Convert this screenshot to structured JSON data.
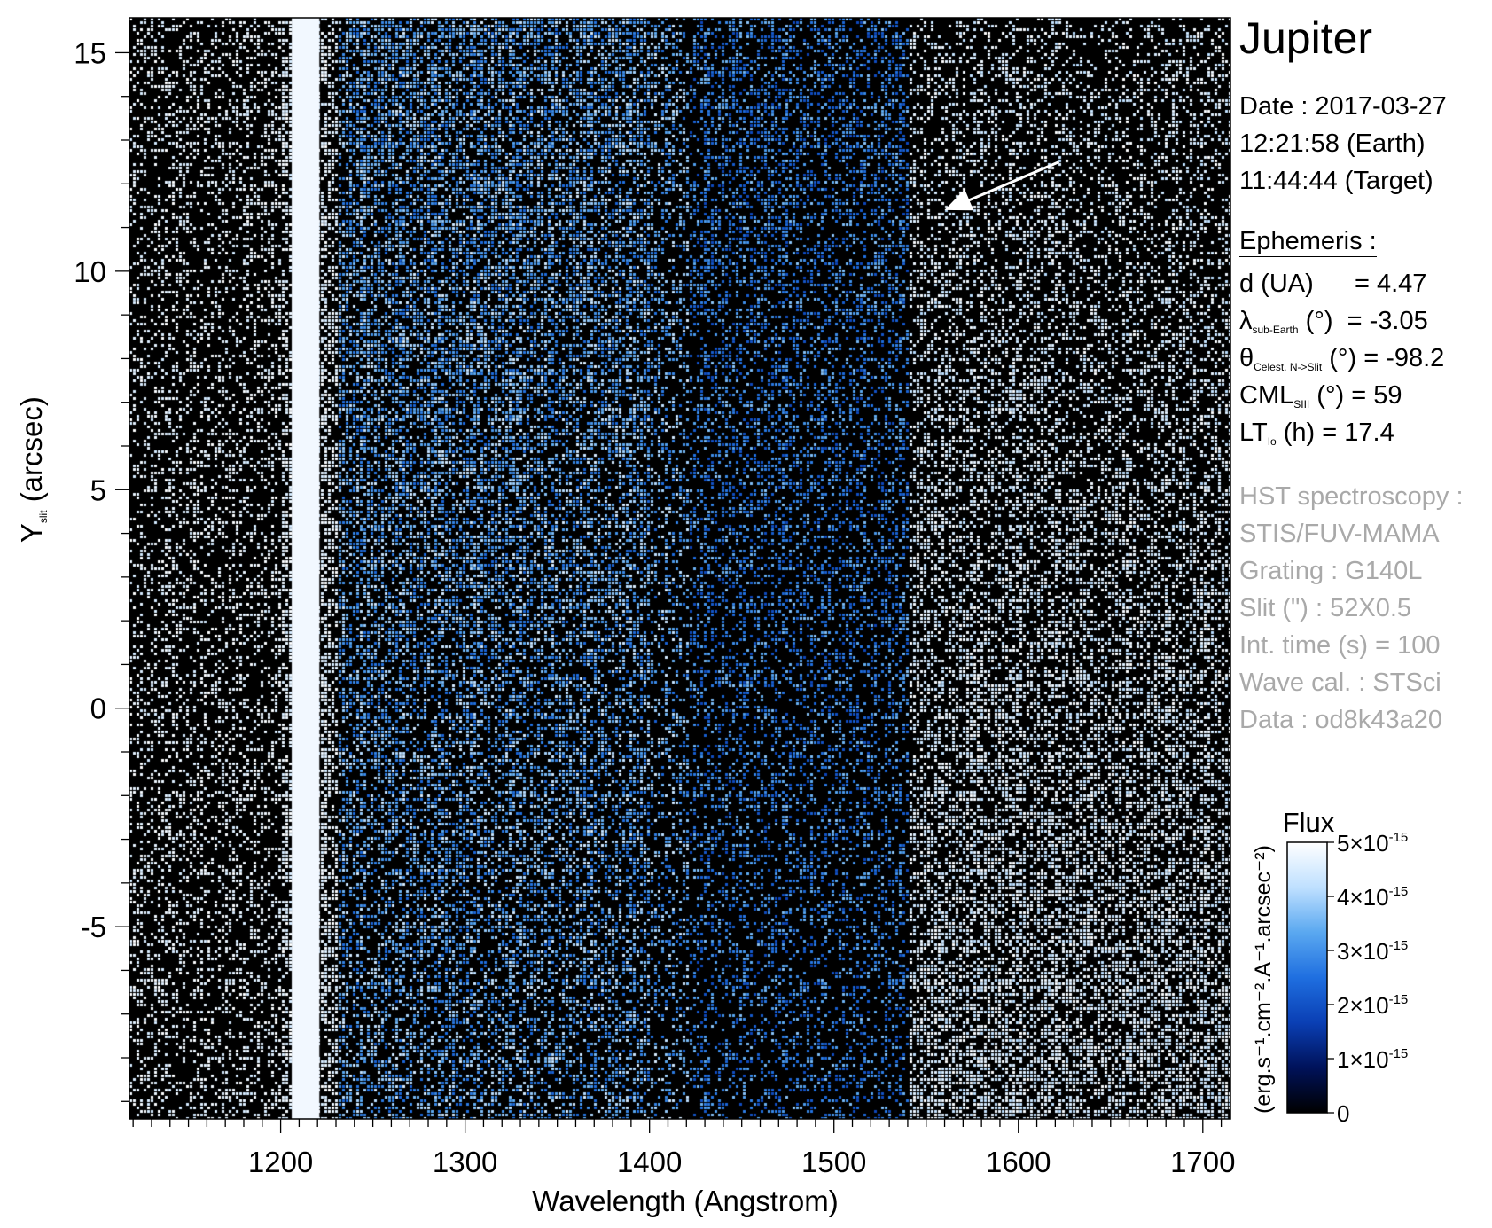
{
  "target": "Jupiter",
  "observation": {
    "date_line": "Date : 2017-03-27",
    "earth_time_line": "12:21:58 (Earth)",
    "target_time_line": "11:44:44 (Target)"
  },
  "ephemeris": {
    "header": "Ephemeris :",
    "d": {
      "name": "d (UA)",
      "value": "= 4.47"
    },
    "lambda": {
      "symbol": "λ",
      "sub": "sub-Earth",
      "unit": " (°)",
      "value": "= -3.05"
    },
    "theta": {
      "symbol": "θ",
      "sub": "Celest. N->Slit",
      "unit": " (°)",
      "value": "= -98.2"
    },
    "cml": {
      "symbol": "CML",
      "sub": "SIII",
      "unit": " (°)",
      "value": "= 59"
    },
    "lt": {
      "symbol": "LT",
      "sub": "Io",
      "unit": " (h)",
      "value": "= 17.4"
    }
  },
  "hst": {
    "header": "HST spectroscopy :",
    "lines": [
      "STIS/FUV-MAMA",
      "Grating : G140L",
      "Slit (\") : 52X0.5",
      "Int. time (s) = 100",
      "Wave cal. : STSci",
      "Data : od8k43a20"
    ]
  },
  "colors": {
    "background": "#000000",
    "bright": "#f2f8ff",
    "arrow": "#ffffff",
    "side_gray": "#a9a9a9",
    "colormap": [
      "#000000",
      "#00125a",
      "#0a3fb4",
      "#1f6fe0",
      "#5aa8f0",
      "#bfe0ff",
      "#ffffff"
    ]
  },
  "chart_data": {
    "type": "heatmap",
    "x_label": "Wavelength (Angstrom)",
    "y_label": {
      "main": "Y",
      "sub": "slit",
      "unit": " (arcsec)"
    },
    "xlim": [
      1118,
      1715
    ],
    "ylim": [
      -9.4,
      15.8
    ],
    "x_ticks": [
      1200,
      1300,
      1400,
      1500,
      1600,
      1700
    ],
    "y_ticks": [
      15,
      10,
      5,
      0,
      -5
    ],
    "bright_band": {
      "x_range": [
        1206,
        1221
      ],
      "label": "Lyman alpha saturated column"
    },
    "bright_region": {
      "x_start": 1540,
      "description_level": "high"
    },
    "arrow": {
      "from": [
        1622,
        12.5
      ],
      "to": [
        1560,
        11.4
      ]
    },
    "colorbar": {
      "title": "Flux",
      "unit_label": "(erg.s⁻¹.cm⁻².A⁻¹.arcsec⁻²)",
      "range": [
        0,
        5e-15
      ],
      "ticks": [
        {
          "value": 0,
          "mantissa": "0",
          "exp": ""
        },
        {
          "value": 1e-15,
          "mantissa": "1×10",
          "exp": "-15"
        },
        {
          "value": 2e-15,
          "mantissa": "2×10",
          "exp": "-15"
        },
        {
          "value": 3e-15,
          "mantissa": "3×10",
          "exp": "-15"
        },
        {
          "value": 4e-15,
          "mantissa": "4×10",
          "exp": "-15"
        },
        {
          "value": 5e-15,
          "mantissa": "5×10",
          "exp": "-15"
        }
      ]
    }
  }
}
